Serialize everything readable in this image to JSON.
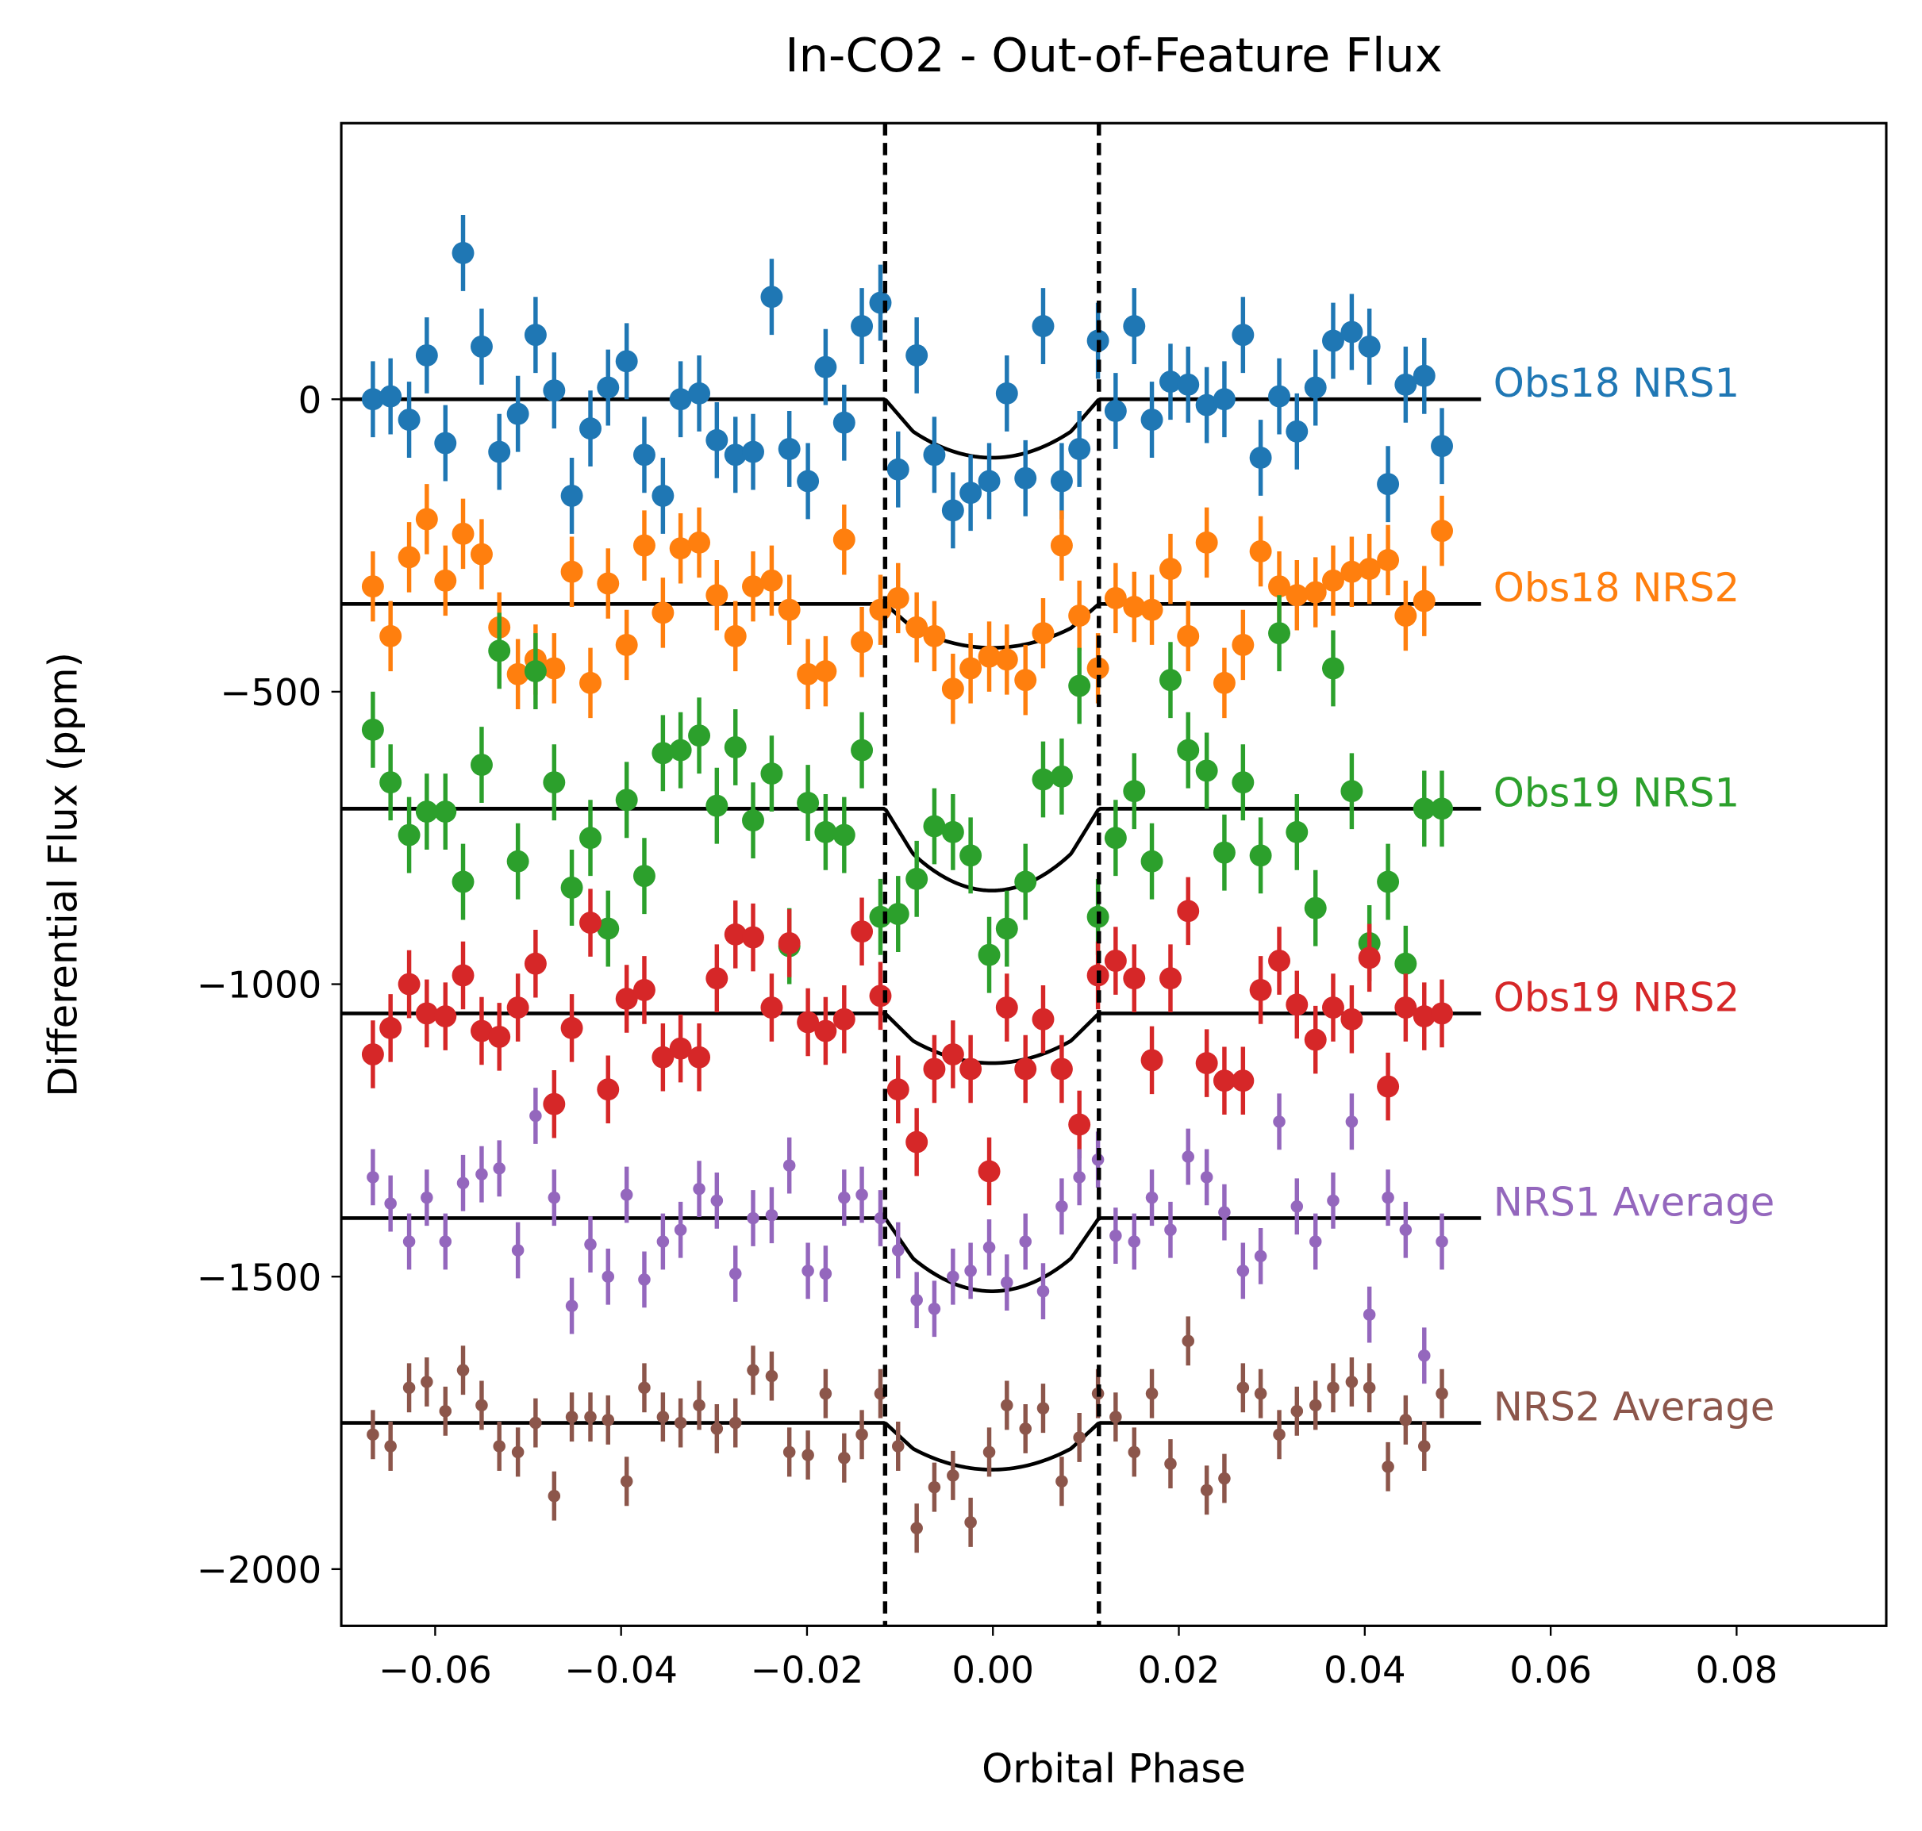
{
  "chart_data": {
    "type": "scatter",
    "title": "In-CO2 - Out-of-Feature Flux",
    "xlabel": "Orbital Phase",
    "ylabel": "Differential Flux (ppm)",
    "xlim": [
      -0.0701,
      0.0961
    ],
    "ylim": [
      -2097,
      472
    ],
    "xticks": [
      {
        "value": -0.06,
        "label": "−0.06"
      },
      {
        "value": -0.04,
        "label": "−0.04"
      },
      {
        "value": -0.02,
        "label": "−0.02"
      },
      {
        "value": 0,
        "label": "0.00"
      },
      {
        "value": 0.02,
        "label": "0.02"
      },
      {
        "value": 0.04,
        "label": "0.04"
      },
      {
        "value": 0.06,
        "label": "0.06"
      },
      {
        "value": 0.08,
        "label": "0.08"
      }
    ],
    "yticks": [
      0,
      {
        "value": -500,
        "label": "−500"
      },
      {
        "value": -1000,
        "label": "−1000"
      },
      {
        "value": -1500,
        "label": "−1500"
      },
      {
        "value": -2000,
        "label": "−2000"
      }
    ],
    "vlines": [
      -0.0116,
      0.0114
    ],
    "model_xlim": [
      -0.0701,
      0.0525
    ],
    "x": [
      -0.0667,
      -0.0648,
      -0.0628,
      -0.0609,
      -0.0589,
      -0.057,
      -0.055,
      -0.0531,
      -0.0511,
      -0.0492,
      -0.0472,
      -0.0453,
      -0.0433,
      -0.0414,
      -0.0394,
      -0.0375,
      -0.0355,
      -0.0336,
      -0.0316,
      -0.0297,
      -0.0277,
      -0.0258,
      -0.0238,
      -0.0219,
      -0.0199,
      -0.018,
      -0.016,
      -0.0141,
      -0.0121,
      -0.0102,
      -0.0082,
      -0.0063,
      -0.0043,
      -0.0024,
      -0.0004,
      0.0015,
      0.0035,
      0.0054,
      0.0074,
      0.0093,
      0.0113,
      0.0132,
      0.0152,
      0.0171,
      0.0191,
      0.021,
      0.023,
      0.0249,
      0.0269,
      0.0288,
      0.0308,
      0.0327,
      0.0347,
      0.0366,
      0.0386,
      0.0405,
      0.0425,
      0.0444,
      0.0464,
      0.0483
    ],
    "series": [
      {
        "name": "Obs18 NRS1",
        "color": "#1f77b4",
        "error": 65,
        "model": {
          "offset": 0,
          "depth": 100
        },
        "values": [
          0,
          5,
          -35,
          75,
          -75,
          250,
          90,
          -90,
          -25,
          110,
          15,
          -165,
          -50,
          20,
          65,
          -95,
          -165,
          0,
          10,
          -70,
          -95,
          -90,
          175,
          -85,
          -140,
          55,
          -40,
          125,
          165,
          -120,
          75,
          -95,
          -190,
          -160,
          -140,
          10,
          -135,
          125,
          -140,
          -85,
          100,
          -20,
          125,
          -35,
          30,
          25,
          -10,
          0,
          110,
          -100,
          5,
          -55,
          20,
          100,
          115,
          90,
          -145,
          25,
          40,
          -80
        ]
      },
      {
        "name": "Obs18 NRS2",
        "color": "#ff7f0e",
        "error": 60,
        "model": {
          "offset": -350,
          "depth": 75
        },
        "values": [
          -320,
          -405,
          -270,
          -205,
          -310,
          -230,
          -265,
          -390,
          -470,
          -445,
          -460,
          -295,
          -485,
          -315,
          -420,
          -250,
          -365,
          -255,
          -245,
          -335,
          -405,
          -320,
          -310,
          -360,
          -470,
          -465,
          -240,
          -415,
          -360,
          -340,
          -390,
          -405,
          -495,
          -460,
          -440,
          -445,
          -480,
          -400,
          -250,
          -370,
          -460,
          -340,
          -355,
          -360,
          -290,
          -405,
          -245,
          -485,
          -420,
          -260,
          -320,
          -335,
          -330,
          -310,
          -295,
          -290,
          -275,
          -370,
          -345,
          -225
        ]
      },
      {
        "name": "Obs19 NRS1",
        "color": "#2ca02c",
        "error": 65,
        "model": {
          "offset": -700,
          "depth": 140
        },
        "values": [
          -565,
          -655,
          -745,
          -705,
          -705,
          -825,
          -625,
          -430,
          -790,
          -465,
          -655,
          -835,
          -750,
          -905,
          -685,
          -815,
          -605,
          -600,
          -575,
          -695,
          -595,
          -720,
          -640,
          -935,
          -690,
          -740,
          -745,
          -600,
          -885,
          -880,
          -820,
          -730,
          -740,
          -780,
          -950,
          -905,
          -825,
          -650,
          -645,
          -490,
          -885,
          -750,
          -670,
          -790,
          -480,
          -600,
          -635,
          -775,
          -655,
          -780,
          -400,
          -740,
          -870,
          -460,
          -670,
          -930,
          -825,
          -965,
          -700,
          -700
        ]
      },
      {
        "name": "Obs19 NRS2",
        "color": "#d62728",
        "error": 58,
        "model": {
          "offset": -1050,
          "depth": 85
        },
        "values": [
          -1120,
          -1075,
          -1000,
          -1050,
          -1055,
          -985,
          -1080,
          -1090,
          -1040,
          -965,
          -1205,
          -1075,
          -895,
          -1180,
          -1025,
          -1010,
          -1125,
          -1110,
          -1125,
          -990,
          -915,
          -920,
          -1040,
          -930,
          -1065,
          -1080,
          -1060,
          -910,
          -1020,
          -1180,
          -1270,
          -1145,
          -1120,
          -1145,
          -1320,
          -1040,
          -1145,
          -1060,
          -1145,
          -1240,
          -985,
          -960,
          -990,
          -1130,
          -990,
          -875,
          -1135,
          -1165,
          -1165,
          -1010,
          -960,
          -1035,
          -1095,
          -1040,
          -1060,
          -955,
          -1175,
          -1040,
          -1055,
          -1050
        ]
      },
      {
        "name": "NRS1 Average",
        "color": "#9467bd",
        "error": 48,
        "model": {
          "offset": -1400,
          "depth": 125
        },
        "values": [
          -1330,
          -1375,
          -1440,
          -1365,
          -1440,
          -1340,
          -1325,
          -1315,
          -1455,
          -1225,
          -1365,
          -1550,
          -1445,
          -1500,
          -1360,
          -1505,
          -1440,
          -1420,
          -1350,
          -1370,
          -1495,
          -1400,
          -1395,
          -1310,
          -1490,
          -1495,
          -1365,
          -1360,
          -1400,
          -1455,
          -1540,
          -1555,
          -1500,
          -1490,
          -1450,
          -1510,
          -1440,
          -1525,
          -1380,
          -1330,
          -1300,
          -1430,
          -1440,
          -1365,
          -1420,
          -1295,
          -1330,
          -1390,
          -1490,
          -1465,
          -1235,
          -1380,
          -1440,
          -1370,
          -1235,
          -1565,
          -1365,
          -1420,
          -1635,
          -1440
        ]
      },
      {
        "name": "NRS2 Average",
        "color": "#8c564b",
        "error": 42,
        "model": {
          "offset": -1750,
          "depth": 80
        },
        "values": [
          -1770,
          -1790,
          -1690,
          -1680,
          -1730,
          -1660,
          -1720,
          -1790,
          -1800,
          -1750,
          -1875,
          -1740,
          -1740,
          -1745,
          -1850,
          -1690,
          -1740,
          -1750,
          -1720,
          -1760,
          -1750,
          -1660,
          -1670,
          -1800,
          -1805,
          -1700,
          -1810,
          -1770,
          -1700,
          -1790,
          -1930,
          -1860,
          -1840,
          -1920,
          -1800,
          -1720,
          -1760,
          -1725,
          -1850,
          -1775,
          -1700,
          -1740,
          -1800,
          -1700,
          -1820,
          -1610,
          -1865,
          -1845,
          -1690,
          -1700,
          -1770,
          -1730,
          -1720,
          -1690,
          -1680,
          -1690,
          -1825,
          -1745,
          -1790,
          -1700
        ]
      }
    ]
  }
}
